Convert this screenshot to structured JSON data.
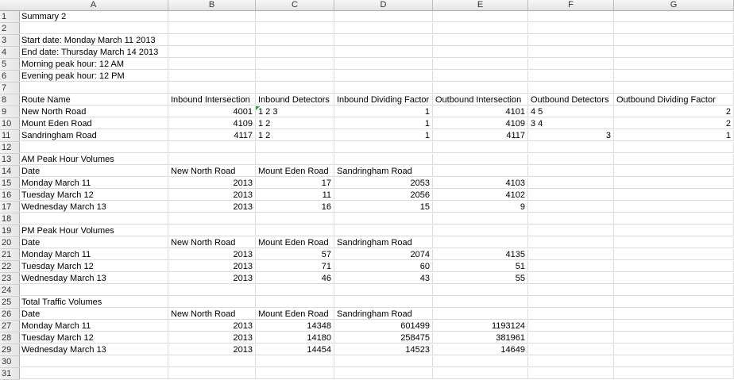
{
  "columns": [
    "A",
    "B",
    "C",
    "D",
    "E",
    "F",
    "G"
  ],
  "rows": [
    {
      "n": "1",
      "c": [
        "Summary 2",
        "",
        "",
        "",
        "",
        "",
        ""
      ]
    },
    {
      "n": "2",
      "c": [
        "",
        "",
        "",
        "",
        "",
        "",
        ""
      ]
    },
    {
      "n": "3",
      "c": [
        "Start date: Monday  March 11  2013",
        "",
        "",
        "",
        "",
        "",
        ""
      ]
    },
    {
      "n": "4",
      "c": [
        "End date: Thursday  March 14  2013",
        "",
        "",
        "",
        "",
        "",
        ""
      ]
    },
    {
      "n": "5",
      "c": [
        "Morning peak hour: 12 AM",
        "",
        "",
        "",
        "",
        "",
        ""
      ]
    },
    {
      "n": "6",
      "c": [
        "Evening peak hour: 12 PM",
        "",
        "",
        "",
        "",
        "",
        ""
      ]
    },
    {
      "n": "7",
      "c": [
        "",
        "",
        "",
        "",
        "",
        "",
        ""
      ]
    },
    {
      "n": "8",
      "c": [
        "Route Name",
        "Inbound Intersection",
        "Inbound Detectors",
        "Inbound Dividing Factor",
        "Outbound Intersection",
        "Outbound Detectors",
        "Outbound Dividing Factor"
      ]
    },
    {
      "n": "9",
      "c": [
        "New North Road",
        "4001",
        "1 2 3",
        "1",
        "4101",
        "4 5",
        "2"
      ]
    },
    {
      "n": "10",
      "c": [
        "Mount Eden Road",
        "4109",
        "1 2",
        "1",
        "4109",
        "3 4",
        "2"
      ]
    },
    {
      "n": "11",
      "c": [
        "Sandringham Road",
        "4117",
        "1 2",
        "1",
        "4117",
        "3",
        "1"
      ]
    },
    {
      "n": "12",
      "c": [
        "",
        "",
        "",
        "",
        "",
        "",
        ""
      ]
    },
    {
      "n": "13",
      "c": [
        "AM Peak Hour Volumes",
        "",
        "",
        "",
        "",
        "",
        ""
      ]
    },
    {
      "n": "14",
      "c": [
        "Date",
        "New North Road",
        "Mount Eden Road",
        "Sandringham Road",
        "",
        "",
        ""
      ]
    },
    {
      "n": "15",
      "c": [
        "Monday March 11",
        "2013",
        "17",
        "2053",
        "4103",
        "",
        ""
      ]
    },
    {
      "n": "16",
      "c": [
        "Tuesday March 12",
        "2013",
        "11",
        "2056",
        "4102",
        "",
        ""
      ]
    },
    {
      "n": "17",
      "c": [
        "Wednesday March 13",
        "2013",
        "16",
        "15",
        "9",
        "",
        ""
      ]
    },
    {
      "n": "18",
      "c": [
        "",
        "",
        "",
        "",
        "",
        "",
        ""
      ]
    },
    {
      "n": "19",
      "c": [
        "PM Peak Hour Volumes",
        "",
        "",
        "",
        "",
        "",
        ""
      ]
    },
    {
      "n": "20",
      "c": [
        "Date",
        "New North Road",
        "Mount Eden Road",
        "Sandringham Road",
        "",
        "",
        ""
      ]
    },
    {
      "n": "21",
      "c": [
        "Monday March 11",
        "2013",
        "57",
        "2074",
        "4135",
        "",
        ""
      ]
    },
    {
      "n": "22",
      "c": [
        "Tuesday March 12",
        "2013",
        "71",
        "60",
        "51",
        "",
        ""
      ]
    },
    {
      "n": "23",
      "c": [
        "Wednesday March 13",
        "2013",
        "46",
        "43",
        "55",
        "",
        ""
      ]
    },
    {
      "n": "24",
      "c": [
        "",
        "",
        "",
        "",
        "",
        "",
        ""
      ]
    },
    {
      "n": "25",
      "c": [
        "Total Traffic Volumes",
        "",
        "",
        "",
        "",
        "",
        ""
      ]
    },
    {
      "n": "26",
      "c": [
        "Date",
        "New North Road",
        "Mount Eden Road",
        "Sandringham Road",
        "",
        "",
        ""
      ]
    },
    {
      "n": "27",
      "c": [
        "Monday March 11",
        "2013",
        "14348",
        "601499",
        "1193124",
        "",
        ""
      ]
    },
    {
      "n": "28",
      "c": [
        "Tuesday March 12",
        "2013",
        "14180",
        "258475",
        "381961",
        "",
        ""
      ]
    },
    {
      "n": "29",
      "c": [
        "Wednesday March 13",
        "2013",
        "14454",
        "14523",
        "14649",
        "",
        ""
      ]
    },
    {
      "n": "30",
      "c": [
        "",
        "",
        "",
        "",
        "",
        "",
        ""
      ]
    },
    {
      "n": "31",
      "c": [
        "",
        "",
        "",
        "",
        "",
        "",
        ""
      ]
    }
  ],
  "accent": {
    "comment_marker": "#1a9e3a"
  }
}
